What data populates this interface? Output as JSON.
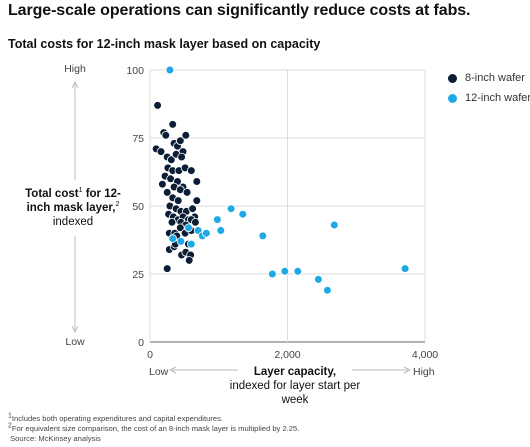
{
  "headline": "Large-scale operations can significantly reduce costs at fabs.",
  "chart_data": {
    "type": "scatter",
    "title": "Total costs for 12-inch mask layer based on capacity",
    "ylabel_bold": "Total cost",
    "ylabel_sup1": "1",
    "ylabel_bold2": "for 12-inch mask layer,",
    "ylabel_sup2": "2",
    "ylabel_tail": "indexed",
    "y_high": "High",
    "y_low": "Low",
    "xlabel_bold": "Layer capacity,",
    "xlabel_rest": "indexed for layer start per week",
    "x_low": "Low",
    "x_high": "High",
    "xlim": [
      0,
      4000
    ],
    "ylim": [
      0,
      100
    ],
    "x_ticks": [
      0,
      2000,
      4000
    ],
    "x_tick_labels": [
      "0",
      "2,000",
      "4,000"
    ],
    "y_ticks": [
      0,
      25,
      50,
      75,
      100
    ],
    "y_tick_labels": [
      "0",
      "25",
      "50",
      "75",
      "100"
    ],
    "grid": true,
    "legend_position": "top-right",
    "series": [
      {
        "name": "8-inch wafer",
        "color": "#0b1e36",
        "points": [
          [
            110,
            87
          ],
          [
            200,
            77
          ],
          [
            230,
            76
          ],
          [
            330,
            80
          ],
          [
            350,
            73
          ],
          [
            400,
            72
          ],
          [
            440,
            74
          ],
          [
            480,
            70
          ],
          [
            520,
            76
          ],
          [
            90,
            71
          ],
          [
            160,
            70
          ],
          [
            250,
            68
          ],
          [
            310,
            67
          ],
          [
            380,
            69
          ],
          [
            460,
            68
          ],
          [
            260,
            64
          ],
          [
            330,
            63
          ],
          [
            420,
            63
          ],
          [
            510,
            64
          ],
          [
            600,
            63
          ],
          [
            220,
            61
          ],
          [
            300,
            60
          ],
          [
            400,
            59
          ],
          [
            480,
            57
          ],
          [
            680,
            59
          ],
          [
            180,
            58
          ],
          [
            350,
            57
          ],
          [
            440,
            56
          ],
          [
            540,
            55
          ],
          [
            250,
            55
          ],
          [
            330,
            53
          ],
          [
            410,
            52
          ],
          [
            680,
            52
          ],
          [
            290,
            50
          ],
          [
            380,
            49
          ],
          [
            450,
            48
          ],
          [
            530,
            48
          ],
          [
            620,
            49
          ],
          [
            270,
            47
          ],
          [
            340,
            46
          ],
          [
            410,
            45
          ],
          [
            480,
            46
          ],
          [
            560,
            45
          ],
          [
            650,
            46
          ],
          [
            320,
            44
          ],
          [
            450,
            44
          ],
          [
            520,
            43
          ],
          [
            600,
            45
          ],
          [
            660,
            44
          ],
          [
            280,
            40
          ],
          [
            360,
            40
          ],
          [
            440,
            42
          ],
          [
            510,
            40
          ],
          [
            600,
            41
          ],
          [
            330,
            38
          ],
          [
            390,
            39
          ],
          [
            460,
            37
          ],
          [
            560,
            36
          ],
          [
            280,
            34
          ],
          [
            350,
            35
          ],
          [
            460,
            32
          ],
          [
            520,
            33
          ],
          [
            590,
            32
          ],
          [
            370,
            36
          ],
          [
            250,
            27
          ],
          [
            570,
            30
          ]
        ]
      },
      {
        "name": "12-inch wafer",
        "color": "#1fa8e6",
        "points": [
          [
            290,
            100
          ],
          [
            330,
            38
          ],
          [
            450,
            37
          ],
          [
            560,
            42
          ],
          [
            600,
            36
          ],
          [
            700,
            41
          ],
          [
            760,
            39
          ],
          [
            820,
            40
          ],
          [
            980,
            45
          ],
          [
            1030,
            41
          ],
          [
            1180,
            49
          ],
          [
            1350,
            47
          ],
          [
            1640,
            39
          ],
          [
            1780,
            25
          ],
          [
            1960,
            26
          ],
          [
            2150,
            26
          ],
          [
            2450,
            23
          ],
          [
            2580,
            19
          ],
          [
            2680,
            43
          ],
          [
            3710,
            27
          ]
        ]
      }
    ]
  },
  "footnotes": {
    "note1_mark": "1",
    "note1": "Includes both operating expenditures and capital expenditures.",
    "note2_mark": "2",
    "note2": "For equivalent size comparison, the cost of an 8-inch mask layer is multiplied by 2.25.",
    "source": " Source: McKinsey analysis"
  }
}
